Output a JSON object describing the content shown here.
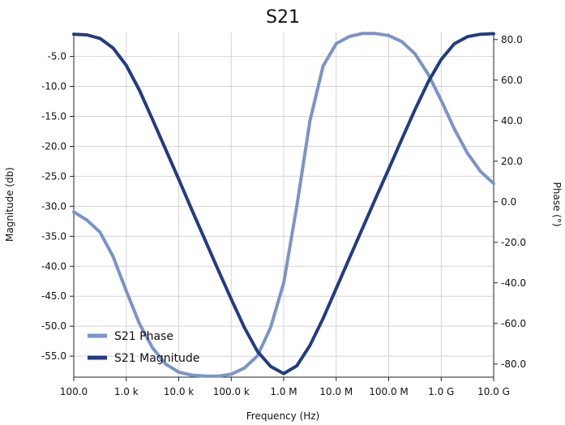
{
  "chart_data": {
    "type": "line",
    "title": "S21",
    "xlabel": "Frequency (Hz)",
    "ylabel_left": "Magnitude (db)",
    "ylabel_right": "Phase (°)",
    "x_scale": "log",
    "xlim": [
      100,
      10000000000
    ],
    "ylim_left": [
      -58.5,
      -1.0
    ],
    "ylim_right": [
      -86.5,
      83.5
    ],
    "x_ticks": [
      {
        "value": 100,
        "label": "100.0"
      },
      {
        "value": 1000,
        "label": "1.0 k"
      },
      {
        "value": 10000,
        "label": "10.0 k"
      },
      {
        "value": 100000,
        "label": "100.0 k"
      },
      {
        "value": 1000000,
        "label": "1.0 M"
      },
      {
        "value": 10000000,
        "label": "10.0 M"
      },
      {
        "value": 100000000,
        "label": "100.0 M"
      },
      {
        "value": 1000000000,
        "label": "1.0 G"
      },
      {
        "value": 10000000000,
        "label": "10.0 G"
      }
    ],
    "y_ticks_left": [
      {
        "value": -5,
        "label": "-5.0"
      },
      {
        "value": -10,
        "label": "-10.0"
      },
      {
        "value": -15,
        "label": "-15.0"
      },
      {
        "value": -20,
        "label": "-20.0"
      },
      {
        "value": -25,
        "label": "-25.0"
      },
      {
        "value": -30,
        "label": "-30.0"
      },
      {
        "value": -35,
        "label": "-35.0"
      },
      {
        "value": -40,
        "label": "-40.0"
      },
      {
        "value": -45,
        "label": "-45.0"
      },
      {
        "value": -50,
        "label": "-50.0"
      },
      {
        "value": -55,
        "label": "-55.0"
      }
    ],
    "y_ticks_right": [
      {
        "value": 80,
        "label": "80.0"
      },
      {
        "value": 60,
        "label": "60.0"
      },
      {
        "value": 40,
        "label": "40.0"
      },
      {
        "value": 20,
        "label": "20.0"
      },
      {
        "value": 0,
        "label": "0.0"
      },
      {
        "value": -20,
        "label": "-20.0"
      },
      {
        "value": -40,
        "label": "-40.0"
      },
      {
        "value": -60,
        "label": "-60.0"
      },
      {
        "value": -80,
        "label": "-80.0"
      }
    ],
    "grid": true,
    "legend_position": "bottom-left",
    "series": [
      {
        "name": "S21 Phase",
        "axis": "right",
        "color": "#7b93cb",
        "x": [
          100,
          178,
          316,
          562,
          1000,
          1778,
          3162,
          5623,
          10000,
          17783,
          31623,
          56234,
          100000,
          177828,
          316228,
          562341,
          1000000,
          1778279,
          3162278,
          5623413,
          10000000,
          17782794,
          31622777,
          56234133,
          100000000,
          177827941,
          316227766,
          562341325,
          1000000000,
          1778279410,
          3162277660,
          5623413252,
          10000000000
        ],
        "values": [
          -5,
          -9,
          -15,
          -27,
          -44,
          -60,
          -72,
          -80,
          -84,
          -85.5,
          -86,
          -86,
          -85,
          -82,
          -76,
          -62,
          -40,
          -2,
          40,
          67,
          78,
          81.5,
          83,
          83,
          82,
          79,
          73,
          63,
          50,
          36,
          24,
          15,
          9
        ]
      },
      {
        "name": "S21 Magnitude",
        "axis": "left",
        "color": "#223b85",
        "x": [
          100,
          178,
          316,
          562,
          1000,
          1778,
          3162,
          5623,
          10000,
          17783,
          31623,
          56234,
          100000,
          177828,
          316228,
          562341,
          1000000,
          1778279,
          3162278,
          5623413,
          10000000,
          17782794,
          31622777,
          56234133,
          100000000,
          177827941,
          316227766,
          562341325,
          1000000000,
          1778279410,
          3162277660,
          5623413252,
          10000000000
        ],
        "values": [
          -1.3,
          -1.4,
          -2.0,
          -3.6,
          -6.5,
          -10.6,
          -15.5,
          -20.5,
          -25.5,
          -30.6,
          -35.6,
          -40.6,
          -45.5,
          -50.2,
          -54.2,
          -56.7,
          -57.9,
          -56.6,
          -53.2,
          -48.7,
          -43.7,
          -38.7,
          -33.7,
          -28.7,
          -23.8,
          -18.8,
          -13.9,
          -9.3,
          -5.5,
          -2.9,
          -1.7,
          -1.3,
          -1.2
        ]
      }
    ]
  },
  "colors": {
    "phase": "#7b93cb",
    "magnitude": "#223b85",
    "grid": "#d4d4d4",
    "axis": "#222222"
  }
}
